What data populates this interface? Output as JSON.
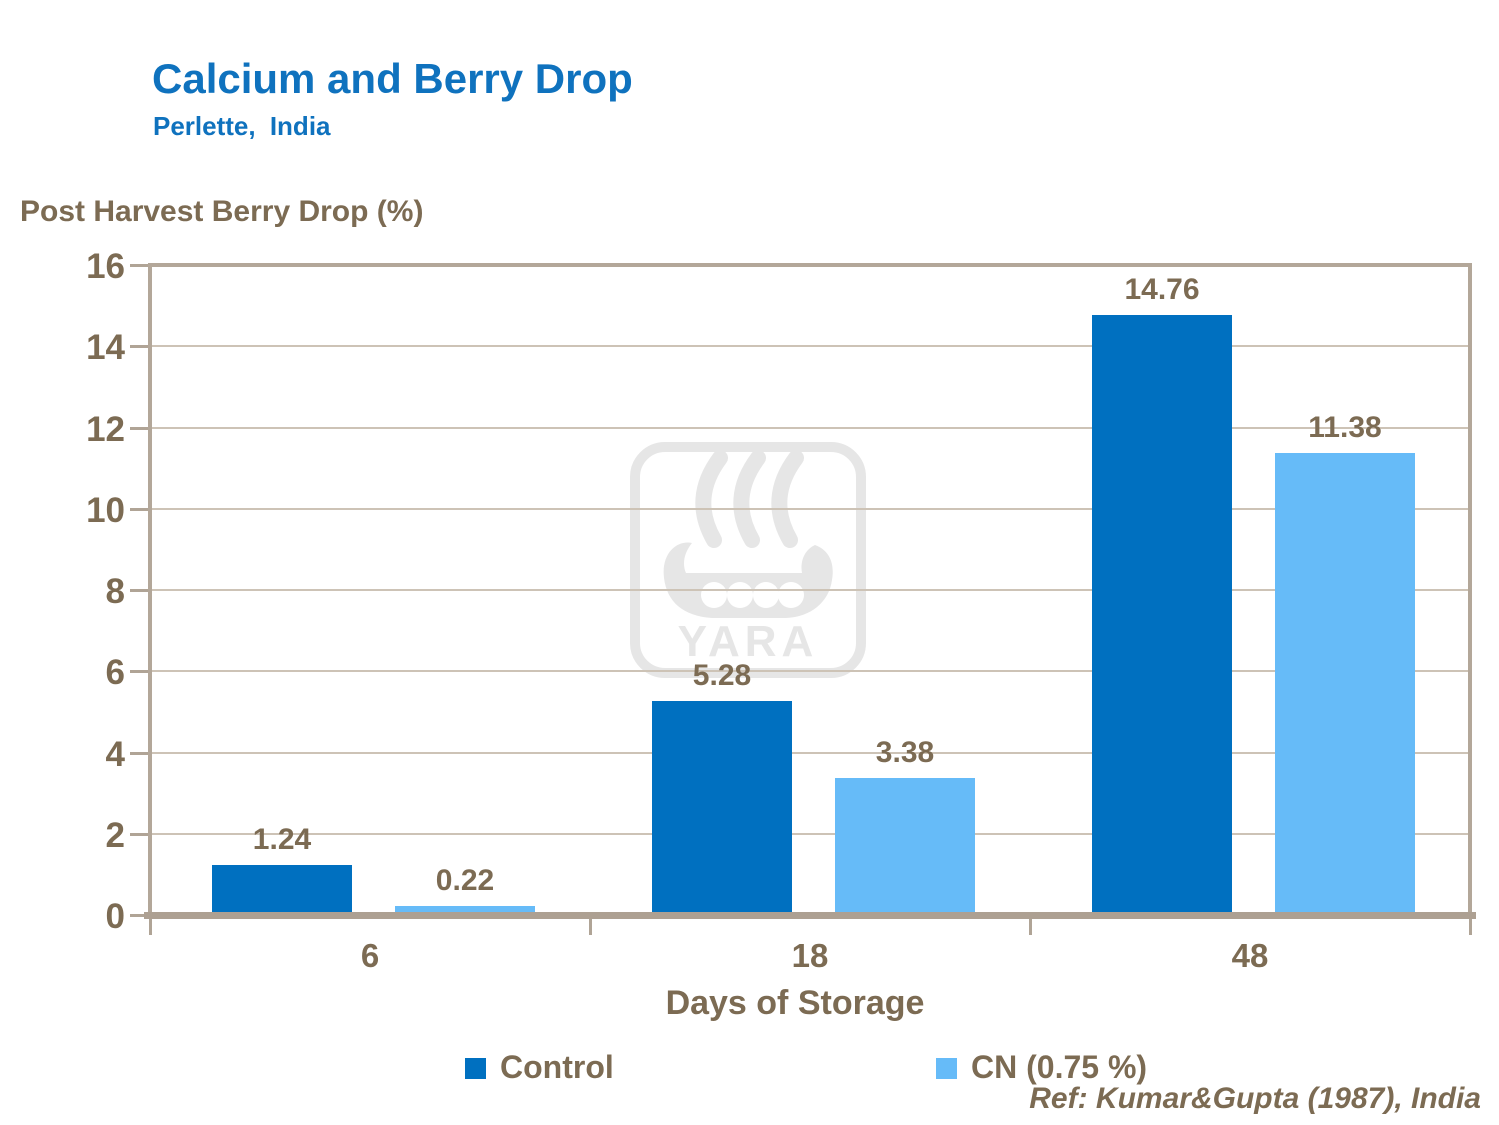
{
  "header": {
    "title": "Calcium and Berry Drop",
    "subtitle": "Perlette, India"
  },
  "chart_data": {
    "type": "bar",
    "title": "Calcium and Berry Drop",
    "subtitle": "Perlette, India",
    "ylabel": "Post Harvest Berry Drop (%)",
    "xlabel": "Days of Storage",
    "categories": [
      "6",
      "18",
      "48"
    ],
    "series": [
      {
        "name": "Control",
        "color": "#0070c0",
        "values": [
          1.24,
          5.28,
          14.76
        ]
      },
      {
        "name": "CN (0.75 %)",
        "color": "#66bbf8",
        "values": [
          0.22,
          3.38,
          11.38
        ]
      }
    ],
    "ylim": [
      0,
      16
    ],
    "ytick_step": 2,
    "grid": true,
    "data_labels": true,
    "legend_position": "bottom"
  },
  "watermark": {
    "name": "yara-logo",
    "text": "YARA"
  },
  "footnote": {
    "ref": "Ref: Kumar&Gupta (1987), India"
  },
  "colors": {
    "title_blue": "#0f72be",
    "series_control": "#0070c0",
    "series_cn": "#66bbf8",
    "text_taupe": "#7c6b53",
    "axis": "#b0a496",
    "gridline": "#cdc3b6",
    "watermark_gray": "#e6e6e6",
    "background": "#ffffff"
  }
}
